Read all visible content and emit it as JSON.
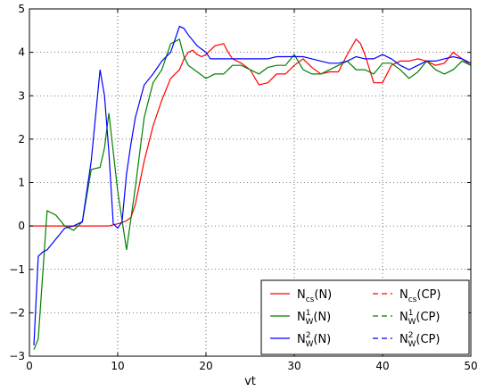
{
  "chart_data": {
    "type": "line",
    "title": "",
    "xlabel": "vt",
    "ylabel": "",
    "xlim": [
      0,
      50
    ],
    "ylim": [
      -3,
      5
    ],
    "xticks": [
      0,
      10,
      20,
      30,
      40,
      50
    ],
    "yticks": [
      -3,
      -2,
      -1,
      0,
      1,
      2,
      3,
      4,
      5
    ],
    "grid": true,
    "legend_position": "bottom-right",
    "series": [
      {
        "name": "N_cs(N)",
        "label_main": "N",
        "label_sub": "cs",
        "label_sup": "",
        "label_arg": "(N)",
        "color": "#ff0000",
        "dash": "solid",
        "x": [
          0,
          2,
          4,
          6,
          8,
          9,
          10,
          10.5,
          11,
          11.5,
          12,
          12.5,
          13,
          13.5,
          14,
          14.5,
          15,
          15.5,
          16,
          16.5,
          17,
          17.5,
          18,
          18.5,
          19,
          19.5,
          20,
          21,
          22,
          22.5,
          23,
          24,
          25,
          26,
          27,
          28,
          29,
          30,
          31,
          32,
          33,
          34,
          35,
          36,
          37,
          37.5,
          38,
          39,
          40,
          41,
          42,
          43,
          44,
          45,
          46,
          47,
          48,
          49,
          50
        ],
        "y": [
          0,
          0,
          0,
          0,
          0,
          0,
          0.05,
          0.08,
          0.12,
          0.2,
          0.5,
          1.0,
          1.5,
          1.9,
          2.3,
          2.6,
          2.9,
          3.15,
          3.4,
          3.5,
          3.6,
          3.85,
          4.0,
          4.05,
          3.95,
          3.9,
          3.95,
          4.15,
          4.2,
          4.0,
          3.85,
          3.75,
          3.6,
          3.25,
          3.3,
          3.5,
          3.5,
          3.7,
          3.85,
          3.65,
          3.5,
          3.55,
          3.55,
          3.95,
          4.3,
          4.2,
          3.95,
          3.3,
          3.3,
          3.7,
          3.8,
          3.8,
          3.85,
          3.8,
          3.7,
          3.75,
          4.0,
          3.85,
          3.7
        ]
      },
      {
        "name": "N_W^1(N)",
        "label_main": "N",
        "label_sub": "W",
        "label_sup": "1",
        "label_arg": "(N)",
        "color": "#008000",
        "dash": "solid",
        "x": [
          0.5,
          1,
          2,
          3,
          4,
          5,
          6,
          7,
          8,
          8.5,
          9,
          10,
          11,
          12,
          13,
          14,
          15,
          16,
          17,
          17.5,
          18,
          19,
          20,
          21,
          22,
          23,
          24,
          25,
          26,
          27,
          28,
          29,
          30,
          31,
          32,
          33,
          34,
          35,
          36,
          37,
          38,
          39,
          40,
          41,
          42,
          43,
          44,
          45,
          46,
          47,
          48,
          49,
          50
        ],
        "y": [
          -2.85,
          -2.6,
          0.35,
          0.25,
          0,
          -0.1,
          0.1,
          1.3,
          1.35,
          1.8,
          2.6,
          0.8,
          -0.55,
          0.9,
          2.5,
          3.3,
          3.6,
          4.2,
          4.3,
          3.9,
          3.7,
          3.55,
          3.4,
          3.5,
          3.5,
          3.7,
          3.7,
          3.6,
          3.5,
          3.65,
          3.7,
          3.7,
          3.95,
          3.6,
          3.5,
          3.5,
          3.6,
          3.7,
          3.8,
          3.6,
          3.6,
          3.5,
          3.75,
          3.75,
          3.6,
          3.4,
          3.55,
          3.8,
          3.6,
          3.5,
          3.6,
          3.8,
          3.7
        ]
      },
      {
        "name": "N_W^2(N)",
        "label_main": "N",
        "label_sub": "W",
        "label_sup": "2",
        "label_arg": "(N)",
        "color": "#0000ff",
        "dash": "solid",
        "x": [
          0.5,
          1,
          1.5,
          2,
          3,
          4,
          5,
          6,
          7,
          8,
          8.5,
          9,
          9.5,
          10,
          10.5,
          11,
          11.5,
          12,
          13,
          14,
          15,
          16,
          17,
          17.5,
          18,
          19,
          20,
          20.5,
          21,
          22,
          23,
          24,
          25,
          26,
          27,
          28,
          29,
          30,
          31,
          32,
          33,
          34,
          35,
          36,
          37,
          38,
          39,
          40,
          41,
          42,
          43,
          44,
          45,
          46,
          47,
          48,
          49,
          50
        ],
        "y": [
          -2.75,
          -0.7,
          -0.6,
          -0.55,
          -0.3,
          -0.05,
          0,
          0.1,
          1.5,
          3.6,
          3.0,
          1.7,
          0.05,
          -0.05,
          0.1,
          1.2,
          1.9,
          2.5,
          3.25,
          3.5,
          3.8,
          4.0,
          4.6,
          4.55,
          4.4,
          4.15,
          4.0,
          3.85,
          3.85,
          3.85,
          3.85,
          3.85,
          3.85,
          3.85,
          3.85,
          3.9,
          3.9,
          3.9,
          3.9,
          3.85,
          3.8,
          3.75,
          3.75,
          3.8,
          3.9,
          3.85,
          3.85,
          3.95,
          3.85,
          3.7,
          3.6,
          3.7,
          3.8,
          3.8,
          3.85,
          3.9,
          3.85,
          3.75
        ]
      },
      {
        "name": "N_cs(CP)",
        "label_main": "N",
        "label_sub": "cs",
        "label_sup": "",
        "label_arg": "(CP)",
        "color": "#ff0000",
        "dash": "dashed",
        "x": [],
        "y": []
      },
      {
        "name": "N_W^1(CP)",
        "label_main": "N",
        "label_sub": "W",
        "label_sup": "1",
        "label_arg": "(CP)",
        "color": "#008000",
        "dash": "dashed",
        "x": [],
        "y": []
      },
      {
        "name": "N_W^2(CP)",
        "label_main": "N",
        "label_sub": "W",
        "label_sup": "2",
        "label_arg": "(CP)",
        "color": "#0000ff",
        "dash": "dashed",
        "x": [],
        "y": []
      }
    ]
  }
}
